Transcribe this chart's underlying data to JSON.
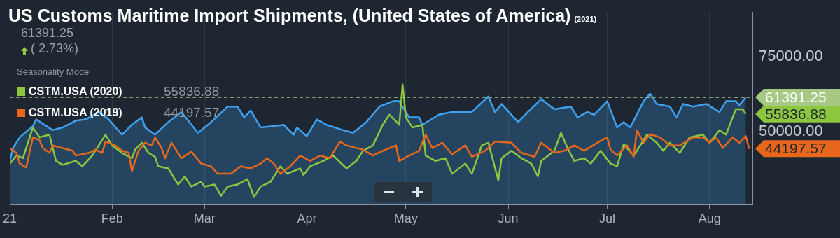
{
  "chart_data": {
    "type": "line",
    "title": "US Customs Maritime Import Shipments, (United States of America)",
    "subtitle": "(2021)",
    "legend_title": "Seasonality Mode",
    "legend": "top left",
    "grid": "x",
    "xlim": [
      "2021-01-01",
      "2021-08-14"
    ],
    "xticks": [
      {
        "value": "2021-01-01",
        "label": "21"
      },
      {
        "value": "2021-02-01",
        "label": "Feb"
      },
      {
        "value": "2021-03-01",
        "label": "Mar"
      },
      {
        "value": "2021-04-01",
        "label": "Apr"
      },
      {
        "value": "2021-05-01",
        "label": "May"
      },
      {
        "value": "2021-06-01",
        "label": "Jun"
      },
      {
        "value": "2021-07-01",
        "label": "Jul"
      },
      {
        "value": "2021-08-01",
        "label": "Aug"
      }
    ],
    "ylim": [
      25500,
      90000
    ],
    "yticks": [
      {
        "value": 50000,
        "label": "50000.00"
      },
      {
        "value": 75000,
        "label": "75000.00"
      }
    ],
    "ref_lines": [
      {
        "axis": "y",
        "value": 61391.25,
        "label": "61391.25",
        "color": "#a5c882",
        "line_style": "dashed"
      }
    ],
    "annotations": [
      "61391.25",
      "( 2.73%)",
      "55836.88",
      "44197.57",
      {
        "text": "55836.88",
        "x": "2021-08-12",
        "y": 55836.88
      },
      {
        "text": "44197.57",
        "x": "2021-08-13",
        "y": 44197.57
      }
    ],
    "series": [
      {
        "type": "area",
        "color": "#3fa0f0",
        "x": [
          "2021-01-01",
          "2021-01-02",
          "2021-01-04",
          "2021-01-08",
          "2021-01-09",
          "2021-01-14",
          "2021-01-17",
          "2021-01-21",
          "2021-01-24",
          "2021-01-28",
          "2021-01-31",
          "2021-02-04",
          "2021-02-07",
          "2021-02-10",
          "2021-02-11",
          "2021-02-14",
          "2021-02-18",
          "2021-02-22",
          "2021-02-27",
          "2021-03-03",
          "2021-03-08",
          "2021-03-11",
          "2021-03-13",
          "2021-03-15",
          "2021-03-18",
          "2021-03-22",
          "2021-03-25",
          "2021-03-28",
          "2021-03-29",
          "2021-04-01",
          "2021-04-04",
          "2021-04-07",
          "2021-04-12",
          "2021-04-15",
          "2021-04-19",
          "2021-04-23",
          "2021-04-27",
          "2021-04-29",
          "2021-05-02",
          "2021-05-05",
          "2021-05-06",
          "2021-05-11",
          "2021-05-15",
          "2021-05-21",
          "2021-05-26",
          "2021-05-28",
          "2021-05-30",
          "2021-06-04",
          "2021-06-07",
          "2021-06-11",
          "2021-06-15",
          "2021-06-20",
          "2021-06-22",
          "2021-06-25",
          "2021-06-27",
          "2021-07-01",
          "2021-07-04",
          "2021-07-06",
          "2021-07-08",
          "2021-07-12",
          "2021-07-14",
          "2021-07-16",
          "2021-07-20",
          "2021-07-22",
          "2021-07-24",
          "2021-07-27",
          "2021-07-31",
          "2021-08-04",
          "2021-08-06",
          "2021-08-09",
          "2021-08-10",
          "2021-08-12"
        ],
        "values": [
          40100,
          44400,
          48000,
          51800,
          54000,
          50400,
          51300,
          53600,
          54000,
          56500,
          54000,
          48900,
          52200,
          54700,
          51300,
          48900,
          53100,
          56500,
          49500,
          53100,
          58300,
          58300,
          54700,
          57000,
          51300,
          51800,
          52200,
          48900,
          51300,
          48400,
          54000,
          52200,
          50400,
          49500,
          53100,
          58300,
          60100,
          60100,
          54700,
          54700,
          52200,
          55600,
          56500,
          56500,
          61700,
          56500,
          59200,
          53100,
          56500,
          60800,
          57400,
          58300,
          54700,
          56500,
          55600,
          60100,
          51300,
          53100,
          51300,
          60100,
          62600,
          59200,
          58300,
          54700,
          59200,
          58300,
          59200,
          56500,
          60100,
          60100,
          58800,
          61391.25
        ]
      },
      {
        "name": "CSTM.USA (2020)",
        "color": "#8dc63f",
        "x": [
          "2021-01-01",
          "2021-01-03",
          "2021-01-05",
          "2021-01-08",
          "2021-01-10",
          "2021-01-13",
          "2021-01-15",
          "2021-01-17",
          "2021-01-21",
          "2021-01-23",
          "2021-01-26",
          "2021-01-30",
          "2021-02-01",
          "2021-02-04",
          "2021-02-07",
          "2021-02-08",
          "2021-02-10",
          "2021-02-12",
          "2021-02-14",
          "2021-02-15",
          "2021-02-18",
          "2021-02-21",
          "2021-02-23",
          "2021-02-25",
          "2021-02-28",
          "2021-03-01",
          "2021-03-04",
          "2021-03-06",
          "2021-03-08",
          "2021-03-11",
          "2021-03-14",
          "2021-03-16",
          "2021-03-18",
          "2021-03-21",
          "2021-03-24",
          "2021-03-26",
          "2021-03-30",
          "2021-03-31",
          "2021-04-02",
          "2021-04-06",
          "2021-04-09",
          "2021-04-13",
          "2021-04-16",
          "2021-04-18",
          "2021-04-21",
          "2021-04-24",
          "2021-04-26",
          "2021-04-29",
          "2021-04-30",
          "2021-05-01",
          "2021-05-03",
          "2021-05-06",
          "2021-05-07",
          "2021-05-10",
          "2021-05-13",
          "2021-05-15",
          "2021-05-19",
          "2021-05-21",
          "2021-05-24",
          "2021-05-26",
          "2021-05-29",
          "2021-05-30",
          "2021-06-02",
          "2021-06-05",
          "2021-06-08",
          "2021-06-10",
          "2021-06-11",
          "2021-06-15",
          "2021-06-17",
          "2021-06-19",
          "2021-06-21",
          "2021-06-24",
          "2021-06-26",
          "2021-06-29",
          "2021-07-02",
          "2021-07-04",
          "2021-07-06",
          "2021-07-09",
          "2021-07-10",
          "2021-07-13",
          "2021-07-16",
          "2021-07-18",
          "2021-07-20",
          "2021-07-23",
          "2021-07-26",
          "2021-07-30",
          "2021-08-01",
          "2021-08-04",
          "2021-08-06",
          "2021-08-08",
          "2021-08-09",
          "2021-08-11",
          "2021-08-12"
        ],
        "values": [
          39200,
          41900,
          41000,
          51300,
          48000,
          48900,
          40100,
          38800,
          40100,
          38300,
          41900,
          48900,
          45300,
          42800,
          41000,
          43900,
          46200,
          42800,
          41500,
          38300,
          37600,
          32200,
          34900,
          31500,
          33100,
          31500,
          32200,
          28400,
          31500,
          32200,
          34000,
          28000,
          31500,
          33100,
          38300,
          35800,
          37600,
          35400,
          38300,
          40100,
          41900,
          37600,
          40100,
          43500,
          45300,
          52200,
          55600,
          52200,
          65700,
          54700,
          51300,
          52200,
          41900,
          40100,
          41000,
          35800,
          39200,
          35800,
          45300,
          46200,
          33600,
          41000,
          43500,
          41000,
          39200,
          34900,
          40100,
          43500,
          49500,
          44400,
          40100,
          41000,
          39200,
          43500,
          39200,
          38300,
          45700,
          41900,
          43500,
          48900,
          46200,
          43500,
          46200,
          42800,
          48000,
          48900,
          46200,
          50400,
          48900,
          54700,
          57400,
          57400,
          55836.88
        ]
      },
      {
        "name": "CSTM.USA (2019)",
        "color": "#e8671c",
        "x": [
          "2021-01-01",
          "2021-01-03",
          "2021-01-04",
          "2021-01-06",
          "2021-01-08",
          "2021-01-10",
          "2021-01-11",
          "2021-01-13",
          "2021-01-14",
          "2021-01-17",
          "2021-01-20",
          "2021-01-21",
          "2021-01-25",
          "2021-01-27",
          "2021-01-29",
          "2021-01-30",
          "2021-02-02",
          "2021-02-04",
          "2021-02-06",
          "2021-02-07",
          "2021-02-09",
          "2021-02-11",
          "2021-02-13",
          "2021-02-14",
          "2021-02-16",
          "2021-02-17",
          "2021-02-19",
          "2021-02-22",
          "2021-02-25",
          "2021-02-28",
          "2021-03-03",
          "2021-03-05",
          "2021-03-09",
          "2021-03-12",
          "2021-03-15",
          "2021-03-18",
          "2021-03-20",
          "2021-03-22",
          "2021-03-24",
          "2021-03-27",
          "2021-03-30",
          "2021-04-02",
          "2021-04-05",
          "2021-04-08",
          "2021-04-11",
          "2021-04-13",
          "2021-04-18",
          "2021-04-21",
          "2021-04-24",
          "2021-04-28",
          "2021-04-29",
          "2021-05-02",
          "2021-05-05",
          "2021-05-07",
          "2021-05-09",
          "2021-05-12",
          "2021-05-15",
          "2021-05-19",
          "2021-05-21",
          "2021-05-25",
          "2021-05-28",
          "2021-06-02",
          "2021-06-05",
          "2021-06-09",
          "2021-06-11",
          "2021-06-15",
          "2021-06-18",
          "2021-06-21",
          "2021-06-24",
          "2021-06-28",
          "2021-07-01",
          "2021-07-02",
          "2021-07-04",
          "2021-07-07",
          "2021-07-09",
          "2021-07-10",
          "2021-07-12",
          "2021-07-14",
          "2021-07-17",
          "2021-07-20",
          "2021-07-23",
          "2021-07-27",
          "2021-07-30",
          "2021-08-01",
          "2021-08-03",
          "2021-08-05",
          "2021-08-08",
          "2021-08-10",
          "2021-08-12",
          "2021-08-13"
        ],
        "values": [
          44400,
          42800,
          39200,
          37900,
          48000,
          47100,
          44400,
          42800,
          45300,
          44400,
          43500,
          41900,
          42800,
          43900,
          42800,
          46600,
          45300,
          43500,
          42800,
          36700,
          43500,
          46200,
          45300,
          48000,
          44400,
          41000,
          46200,
          41000,
          43200,
          39200,
          38300,
          35800,
          35800,
          38300,
          37600,
          39200,
          41000,
          39200,
          35800,
          38300,
          41900,
          40100,
          41900,
          41000,
          46600,
          45300,
          43900,
          41900,
          43500,
          45300,
          40100,
          41900,
          43500,
          48900,
          44400,
          46200,
          42300,
          45300,
          41500,
          43500,
          46600,
          46200,
          42800,
          41500,
          46200,
          42800,
          43500,
          45300,
          43500,
          46200,
          48000,
          43900,
          41900,
          45300,
          41500,
          50400,
          46200,
          49100,
          48000,
          45300,
          45300,
          48000,
          48000,
          46200,
          48000,
          44400,
          48000,
          46200,
          48400,
          44197.57
        ]
      }
    ]
  }
}
